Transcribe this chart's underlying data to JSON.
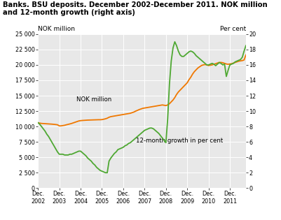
{
  "title_line1": "Banks. BSU deposits. December 2002-December 2011. NOK million",
  "title_line2": "and 12-month growth (right axis)",
  "ylabel_left": "NOK million",
  "ylabel_right": "Per cent",
  "left_ylim": [
    0,
    25000
  ],
  "right_ylim": [
    0,
    20
  ],
  "left_yticks": [
    0,
    2500,
    5000,
    7500,
    10000,
    12500,
    15000,
    17500,
    20000,
    22500,
    25000
  ],
  "left_yticklabels": [
    "0",
    "2 500",
    "5 000",
    "7 500",
    "10 000",
    "12 500",
    "15 000",
    "17 500",
    "20 000",
    "22 500",
    "25 000"
  ],
  "right_yticks": [
    0,
    2,
    4,
    6,
    8,
    10,
    12,
    14,
    16,
    18,
    20
  ],
  "right_yticklabels": [
    "0",
    "2",
    "4",
    "6",
    "8",
    "10",
    "12",
    "14",
    "16",
    "18",
    "20"
  ],
  "orange_color": "#F07800",
  "green_color": "#4EA832",
  "background_color": "#E8E8E8",
  "nok_million": [
    10600,
    10550,
    10500,
    10480,
    10460,
    10440,
    10420,
    10400,
    10380,
    10350,
    10320,
    10280,
    10100,
    10100,
    10150,
    10200,
    10280,
    10350,
    10420,
    10500,
    10600,
    10700,
    10800,
    10900,
    10950,
    10980,
    11000,
    11020,
    11040,
    11050,
    11060,
    11070,
    11080,
    11090,
    11100,
    11100,
    11120,
    11180,
    11250,
    11350,
    11500,
    11600,
    11650,
    11700,
    11750,
    11800,
    11850,
    11900,
    11950,
    12000,
    12050,
    12100,
    12150,
    12250,
    12350,
    12500,
    12620,
    12750,
    12850,
    12950,
    13000,
    13050,
    13100,
    13150,
    13200,
    13250,
    13300,
    13350,
    13400,
    13450,
    13500,
    13450,
    13400,
    13500,
    13700,
    14000,
    14300,
    14700,
    15200,
    15600,
    15900,
    16200,
    16500,
    16800,
    17100,
    17600,
    18000,
    18500,
    18900,
    19200,
    19500,
    19700,
    19900,
    20000,
    20050,
    20000,
    19900,
    19950,
    20000,
    20100,
    20200,
    20300,
    20400,
    20400,
    20350,
    20250,
    20150,
    20100,
    20150,
    20200,
    20300,
    20400,
    20500,
    20600,
    20650,
    20700,
    20800,
    21600
  ],
  "growth_pct": [
    8.5,
    8.3,
    8.0,
    7.7,
    7.4,
    7.0,
    6.7,
    6.3,
    5.9,
    5.5,
    5.1,
    4.7,
    4.4,
    4.4,
    4.4,
    4.3,
    4.3,
    4.3,
    4.4,
    4.4,
    4.5,
    4.6,
    4.7,
    4.8,
    4.8,
    4.6,
    4.4,
    4.2,
    3.9,
    3.7,
    3.5,
    3.2,
    3.0,
    2.7,
    2.5,
    2.3,
    2.2,
    2.1,
    2.0,
    2.0,
    3.5,
    3.9,
    4.2,
    4.5,
    4.7,
    5.0,
    5.1,
    5.2,
    5.3,
    5.5,
    5.6,
    5.8,
    5.9,
    6.1,
    6.3,
    6.5,
    6.7,
    6.9,
    7.1,
    7.3,
    7.5,
    7.6,
    7.7,
    7.8,
    7.8,
    7.7,
    7.5,
    7.3,
    7.1,
    6.8,
    6.5,
    6.2,
    5.9,
    9.0,
    13.5,
    16.5,
    18.2,
    19.0,
    18.5,
    17.8,
    17.3,
    17.1,
    17.1,
    17.3,
    17.5,
    17.7,
    17.8,
    17.7,
    17.5,
    17.2,
    17.0,
    16.8,
    16.6,
    16.4,
    16.2,
    16.0,
    16.0,
    16.1,
    16.2,
    16.1,
    15.9,
    16.1,
    16.3,
    16.2,
    16.0,
    16.1,
    14.5,
    15.3,
    16.0,
    16.1,
    16.2,
    16.4,
    16.5,
    16.6,
    16.7,
    17.0,
    17.8,
    18.5
  ]
}
